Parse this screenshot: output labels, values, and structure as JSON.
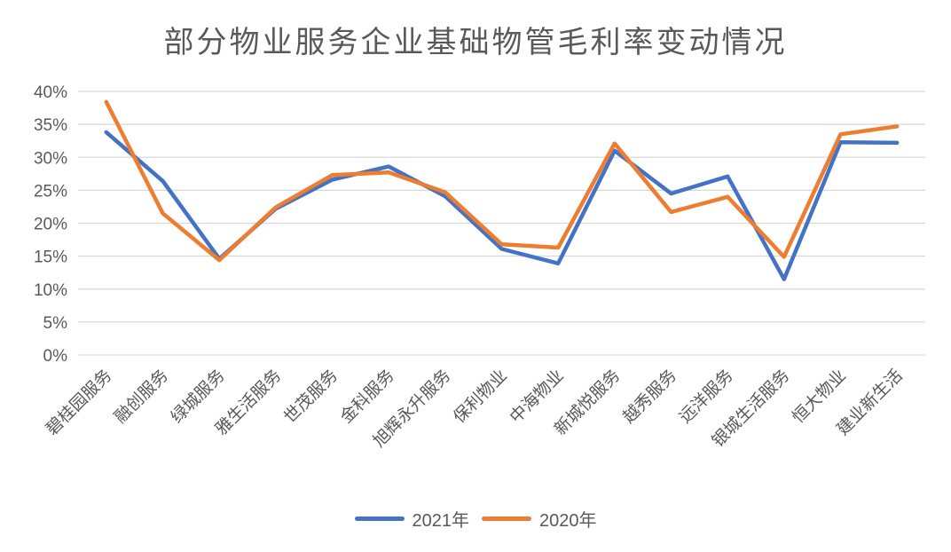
{
  "chart_data": {
    "type": "line",
    "title": "部分物业服务企业基础物管毛利率变动情况",
    "categories": [
      "碧桂园服务",
      "融创服务",
      "绿城服务",
      "雅生活服务",
      "世茂服务",
      "金科服务",
      "旭辉永升服务",
      "保利物业",
      "中海物业",
      "新城悦服务",
      "越秀服务",
      "远洋服务",
      "银城生活服务",
      "恒大物业",
      "建业新生活"
    ],
    "series": [
      {
        "name": "2021年",
        "color": "#4472C4",
        "values": [
          33.8,
          26.4,
          14.6,
          22.2,
          26.6,
          28.6,
          24.1,
          16.1,
          13.9,
          31.0,
          24.5,
          27.1,
          11.5,
          32.3,
          32.2
        ]
      },
      {
        "name": "2020年",
        "color": "#ED7D31",
        "values": [
          38.4,
          21.5,
          14.4,
          22.4,
          27.3,
          27.7,
          24.7,
          16.8,
          16.3,
          32.1,
          21.7,
          24.0,
          14.9,
          33.5,
          34.7
        ]
      }
    ],
    "y_axis": {
      "min": 0,
      "max": 40,
      "step": 5,
      "tick_labels": [
        "0%",
        "5%",
        "10%",
        "15%",
        "20%",
        "25%",
        "30%",
        "35%",
        "40%"
      ]
    },
    "x_axis": {
      "label_rotation_deg": -45
    },
    "grid": true,
    "gridline_color": "#D9D9D9",
    "text_color": "#595959",
    "legend_position": "bottom"
  }
}
